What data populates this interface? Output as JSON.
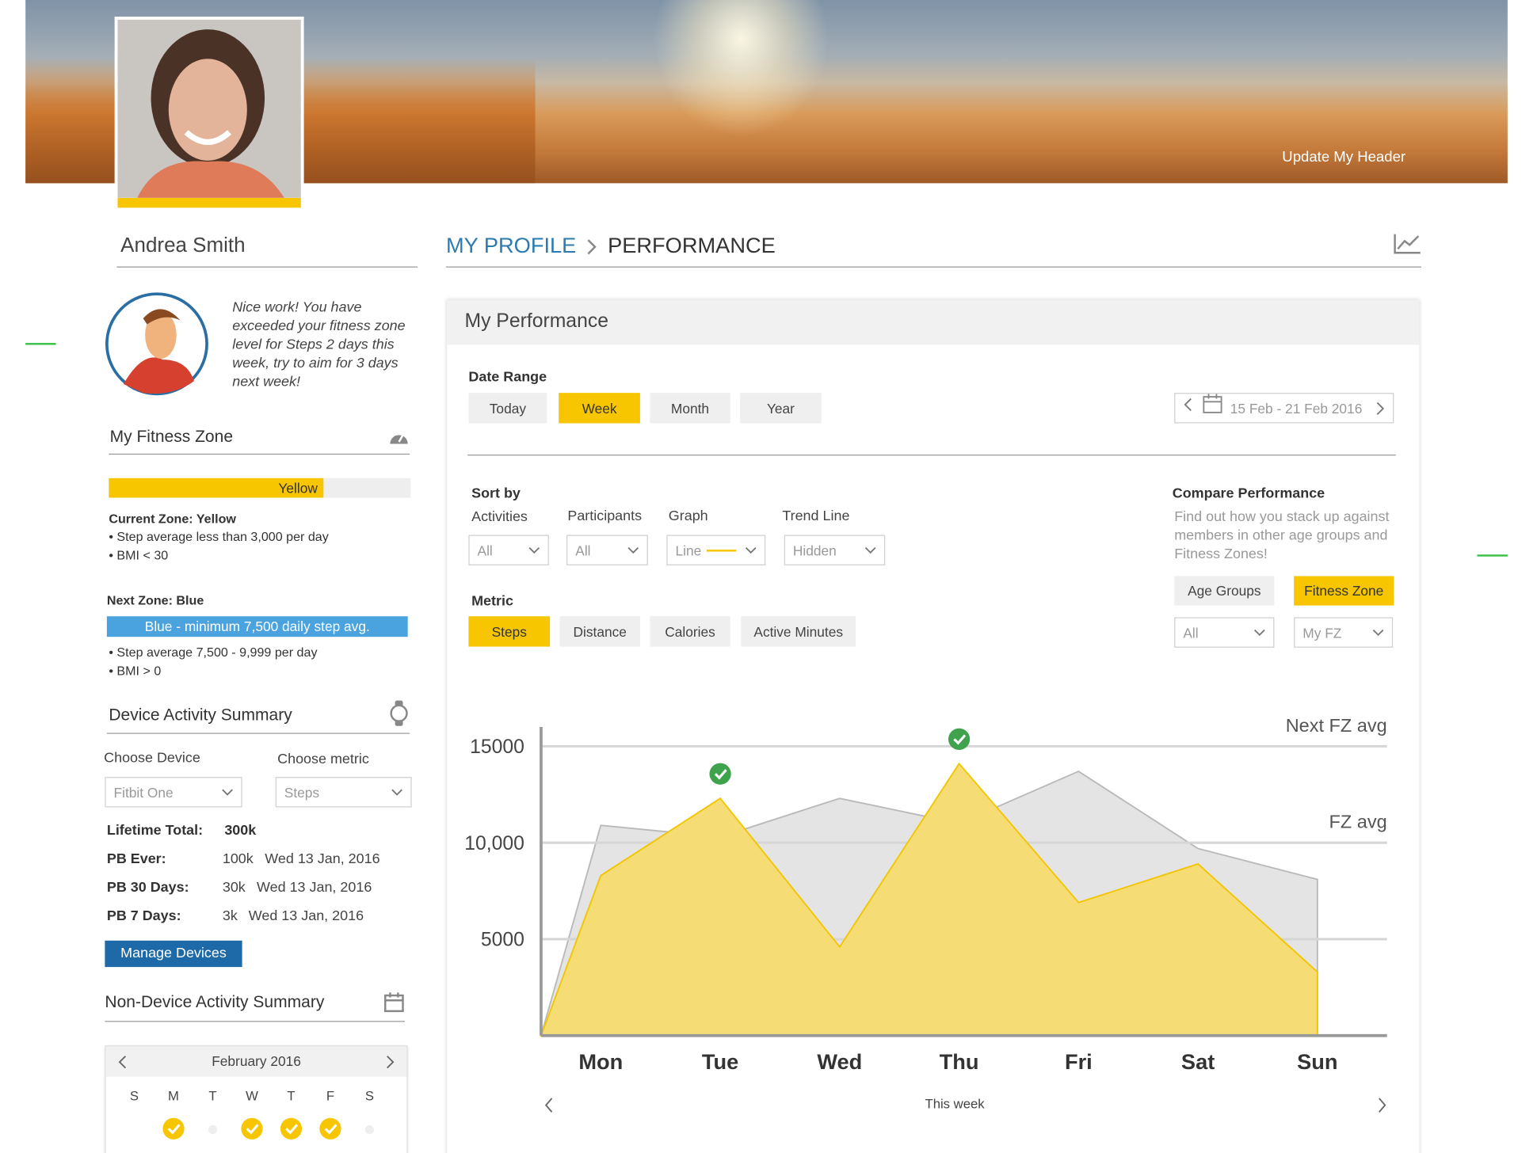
{
  "header": {
    "update_button": "Update My Header"
  },
  "profile": {
    "name": "Andrea Smith"
  },
  "breadcrumb": {
    "parent": "MY PROFILE",
    "current": "PERFORMANCE"
  },
  "coach_message": "Nice work! You have exceeded your fitness zone level for Steps 2 days this week, try to aim for 3 days next week!",
  "fitness_zone": {
    "title": "My Fitness Zone",
    "zone_bar_label": "Yellow",
    "current_zone": "Current Zone: Yellow",
    "current_points": [
      "• Step average less than 3,000 per day",
      "• BMI < 30"
    ],
    "next_zone": "Next Zone: Blue",
    "next_bar_label": "Blue - minimum 7,500 daily step avg.",
    "next_points": [
      "• Step average 7,500 - 9,999 per day",
      "• BMI > 0"
    ]
  },
  "device_summary": {
    "title": "Device Activity Summary",
    "device_label": "Choose Device",
    "device_value": "Fitbit One",
    "metric_label": "Choose metric",
    "metric_value": "Steps",
    "stats": [
      {
        "label": "Lifetime Total:",
        "value": "300k"
      },
      {
        "label": "PB Ever:",
        "value": "100k",
        "date": "Wed 13 Jan, 2016"
      },
      {
        "label": "PB 30 Days:",
        "value": "30k",
        "date": "Wed 13 Jan, 2016"
      },
      {
        "label": "PB 7 Days:",
        "value": "3k",
        "date": "Wed 13 Jan, 2016"
      }
    ],
    "button": "Manage Devices"
  },
  "non_device_summary": {
    "title": "Non-Device Activity Summary",
    "calendar": {
      "month": "February 2016",
      "weekdays": [
        "S",
        "M",
        "T",
        "W",
        "T",
        "F",
        "S"
      ],
      "activity": [
        null,
        true,
        false,
        true,
        true,
        true,
        false
      ]
    }
  },
  "performance": {
    "title": "My Performance",
    "date_range_label": "Date Range",
    "date_range_options": [
      {
        "label": "Today",
        "selected": false
      },
      {
        "label": "Week",
        "selected": true
      },
      {
        "label": "Month",
        "selected": false
      },
      {
        "label": "Year",
        "selected": false
      }
    ],
    "date_display": "15 Feb - 21 Feb 2016",
    "sort_by_label": "Sort by",
    "filters": [
      {
        "label": "Activities",
        "value": "All"
      },
      {
        "label": "Participants",
        "value": "All"
      },
      {
        "label": "Graph",
        "value": "Line"
      },
      {
        "label": "Trend Line",
        "value": "Hidden"
      }
    ],
    "metric_label": "Metric",
    "metrics": [
      {
        "label": "Steps",
        "selected": true
      },
      {
        "label": "Distance",
        "selected": false
      },
      {
        "label": "Calories",
        "selected": false
      },
      {
        "label": "Active Minutes",
        "selected": false
      }
    ],
    "compare": {
      "title": "Compare Performance",
      "text": "Find out how you stack up against members in other age groups and Fitness Zones!",
      "tabs": [
        {
          "label": "Age Groups",
          "selected": false
        },
        {
          "label": "Fitness Zone",
          "selected": true
        }
      ],
      "selects": [
        "All",
        "My FZ"
      ]
    },
    "chart": {
      "type": "area",
      "categories": [
        "Mon",
        "Tue",
        "Wed",
        "Thu",
        "Fri",
        "Sat",
        "Sun"
      ],
      "series": [
        {
          "color": "#e4e4e4",
          "values": [
            10900,
            10300,
            12300,
            11000,
            13700,
            9700,
            8100
          ]
        },
        {
          "color": "#f6dc74",
          "values": [
            8300,
            12300,
            4600,
            14100,
            6900,
            8900,
            3300
          ]
        }
      ],
      "ylim": [
        0,
        16000
      ],
      "yticks": [
        5000,
        {
          "value": 10000,
          "label": "10,000"
        },
        15000
      ],
      "grid": true,
      "annotations": [
        {
          "label": "Next FZ avg",
          "value": 15000
        },
        {
          "label": "FZ avg",
          "value": 10000
        }
      ],
      "goal_met": [
        false,
        true,
        false,
        true,
        false,
        false,
        false
      ],
      "footer": "This week"
    }
  }
}
